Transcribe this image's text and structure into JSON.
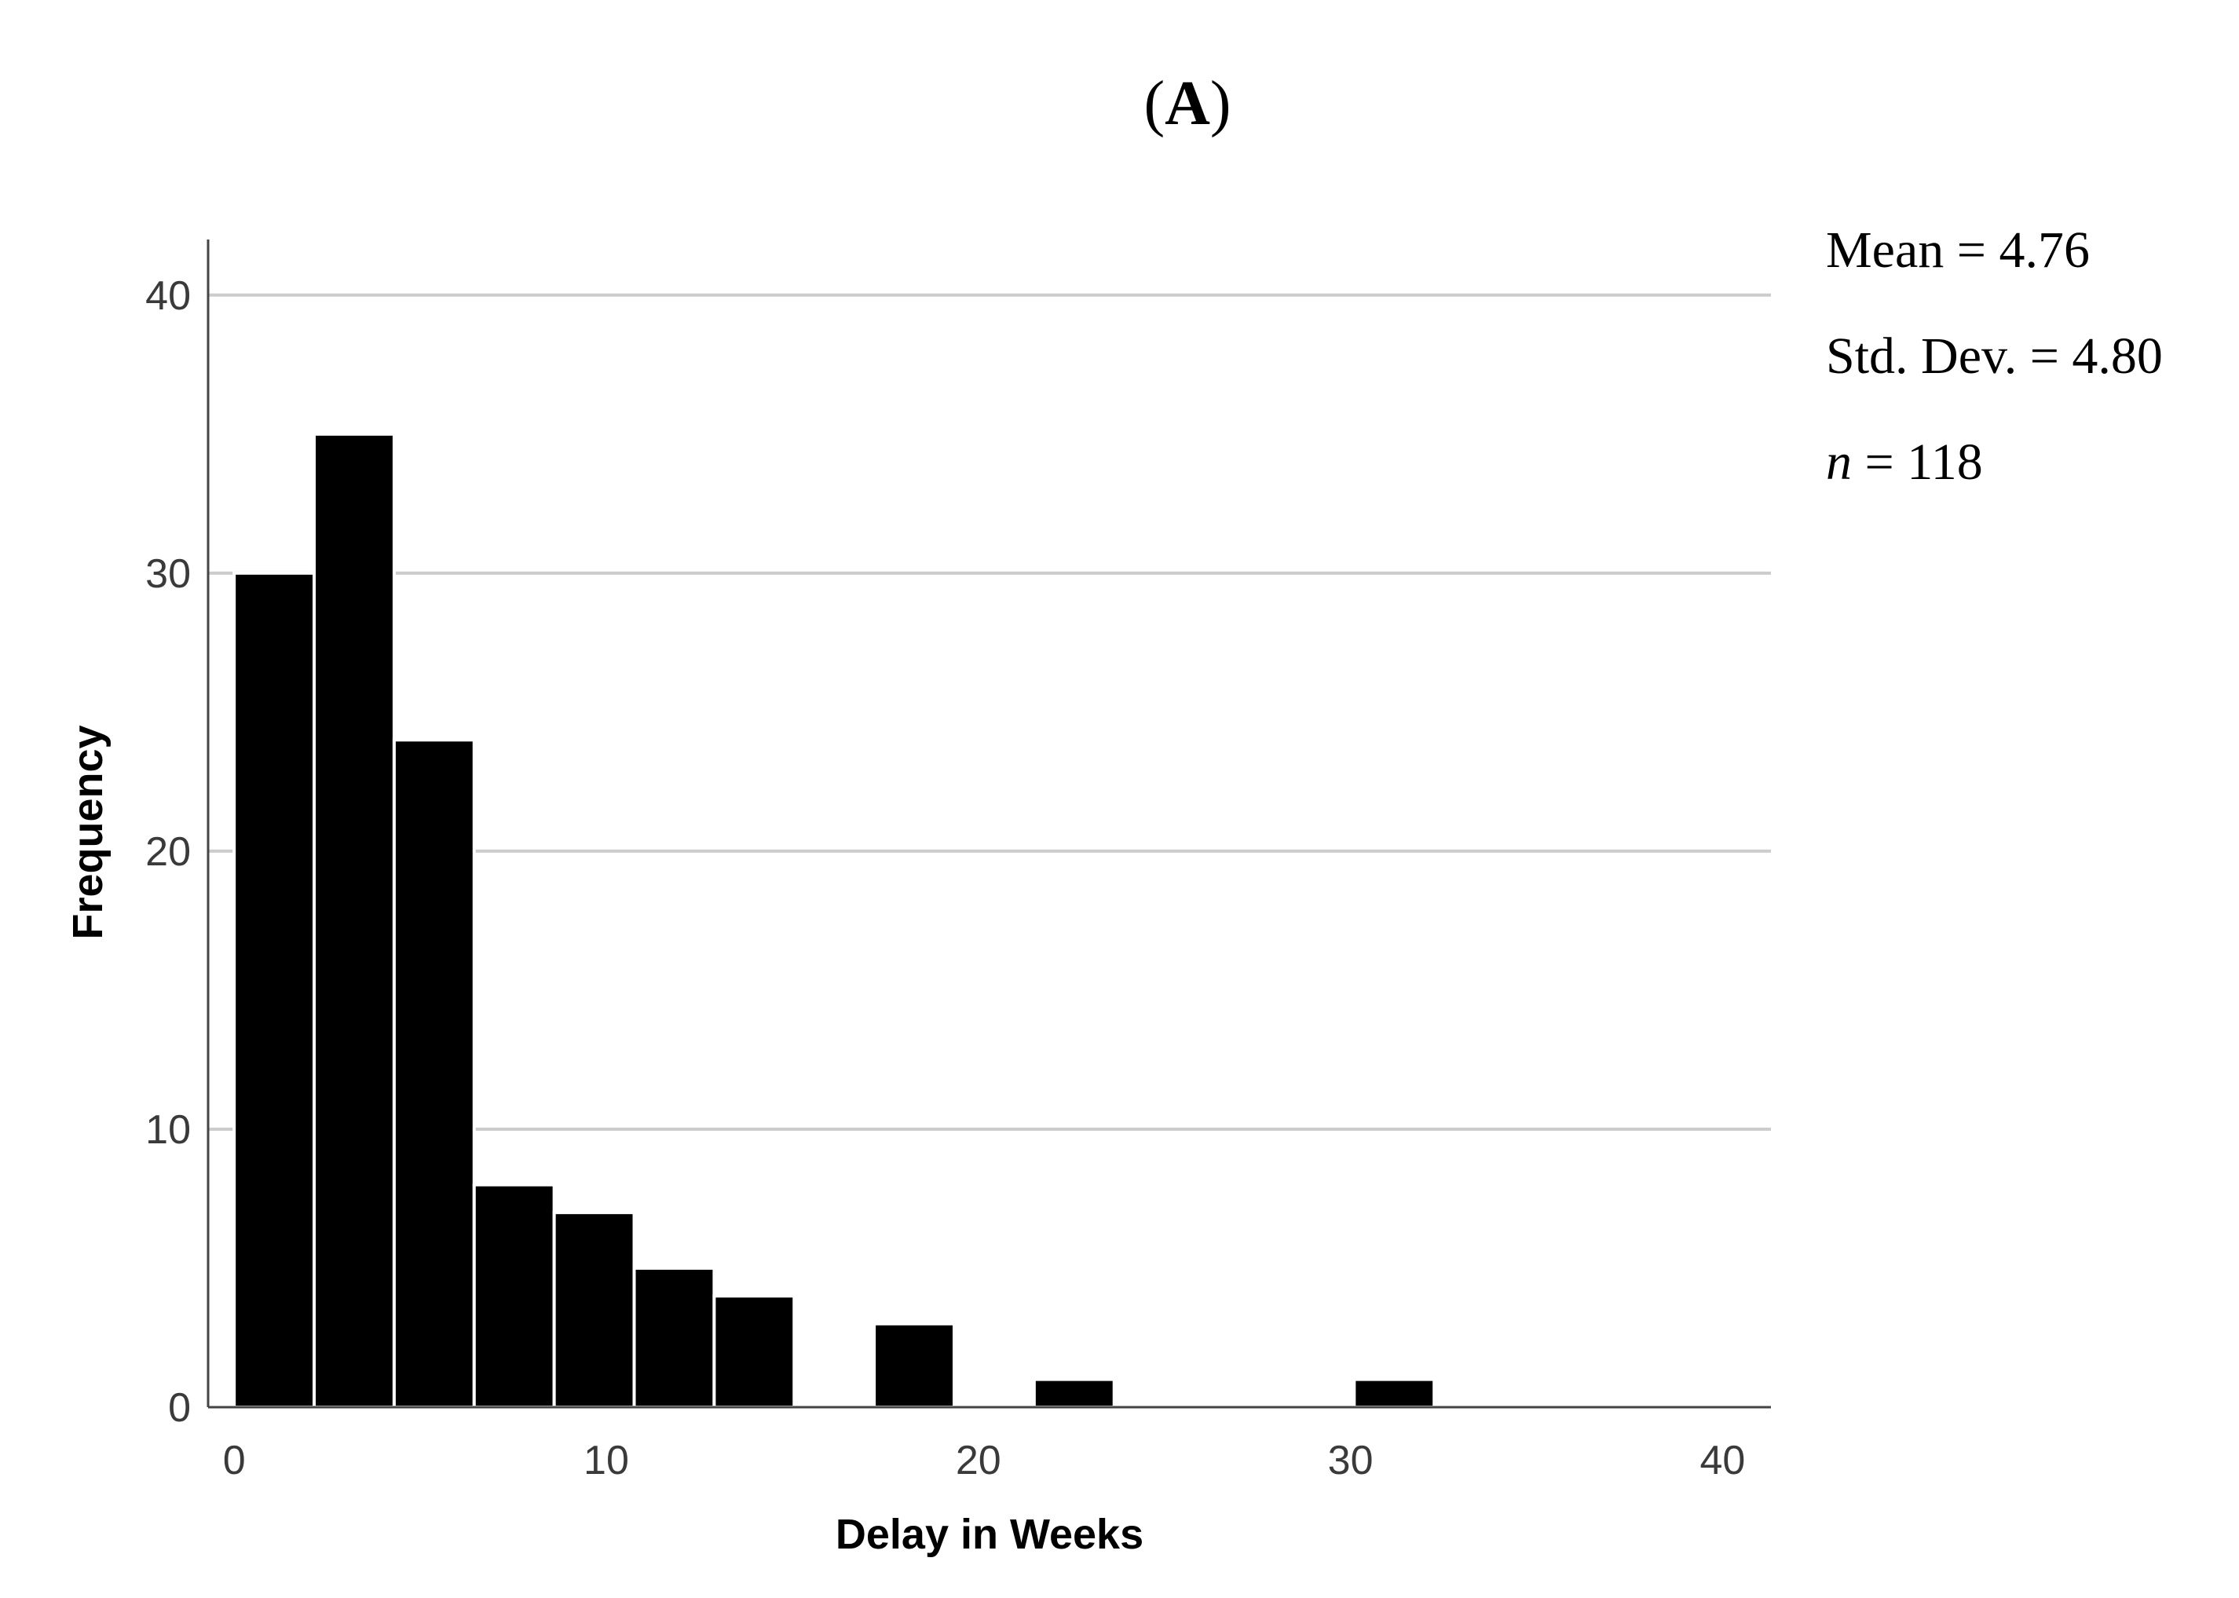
{
  "panel_label": "A",
  "stats": {
    "mean": "Mean = 4.76",
    "sd": "Std. Dev. = 4.80",
    "n_symbol": "n",
    "n_value": " = 118"
  },
  "chart_data": {
    "type": "bar",
    "title": "",
    "xlabel": "Delay in Weeks",
    "ylabel": "Frequency",
    "xlim": [
      -0.7,
      41.3
    ],
    "ylim": [
      0,
      42
    ],
    "xticks": [
      0,
      10,
      20,
      30,
      40
    ],
    "yticks": [
      0,
      10,
      20,
      30,
      40
    ],
    "grid": "horizontal",
    "bar_color": "#000000",
    "grid_color": "#cccccc",
    "bins": [
      {
        "x0": 0.0,
        "x1": 2.15,
        "value": 30
      },
      {
        "x0": 2.15,
        "x1": 4.3,
        "value": 35
      },
      {
        "x0": 4.3,
        "x1": 6.45,
        "value": 24
      },
      {
        "x0": 6.45,
        "x1": 8.6,
        "value": 8
      },
      {
        "x0": 8.6,
        "x1": 10.75,
        "value": 7
      },
      {
        "x0": 10.75,
        "x1": 12.9,
        "value": 5
      },
      {
        "x0": 12.9,
        "x1": 15.05,
        "value": 4
      },
      {
        "x0": 17.2,
        "x1": 19.35,
        "value": 3
      },
      {
        "x0": 21.5,
        "x1": 23.65,
        "value": 1
      },
      {
        "x0": 30.1,
        "x1": 32.25,
        "value": 1
      }
    ]
  }
}
